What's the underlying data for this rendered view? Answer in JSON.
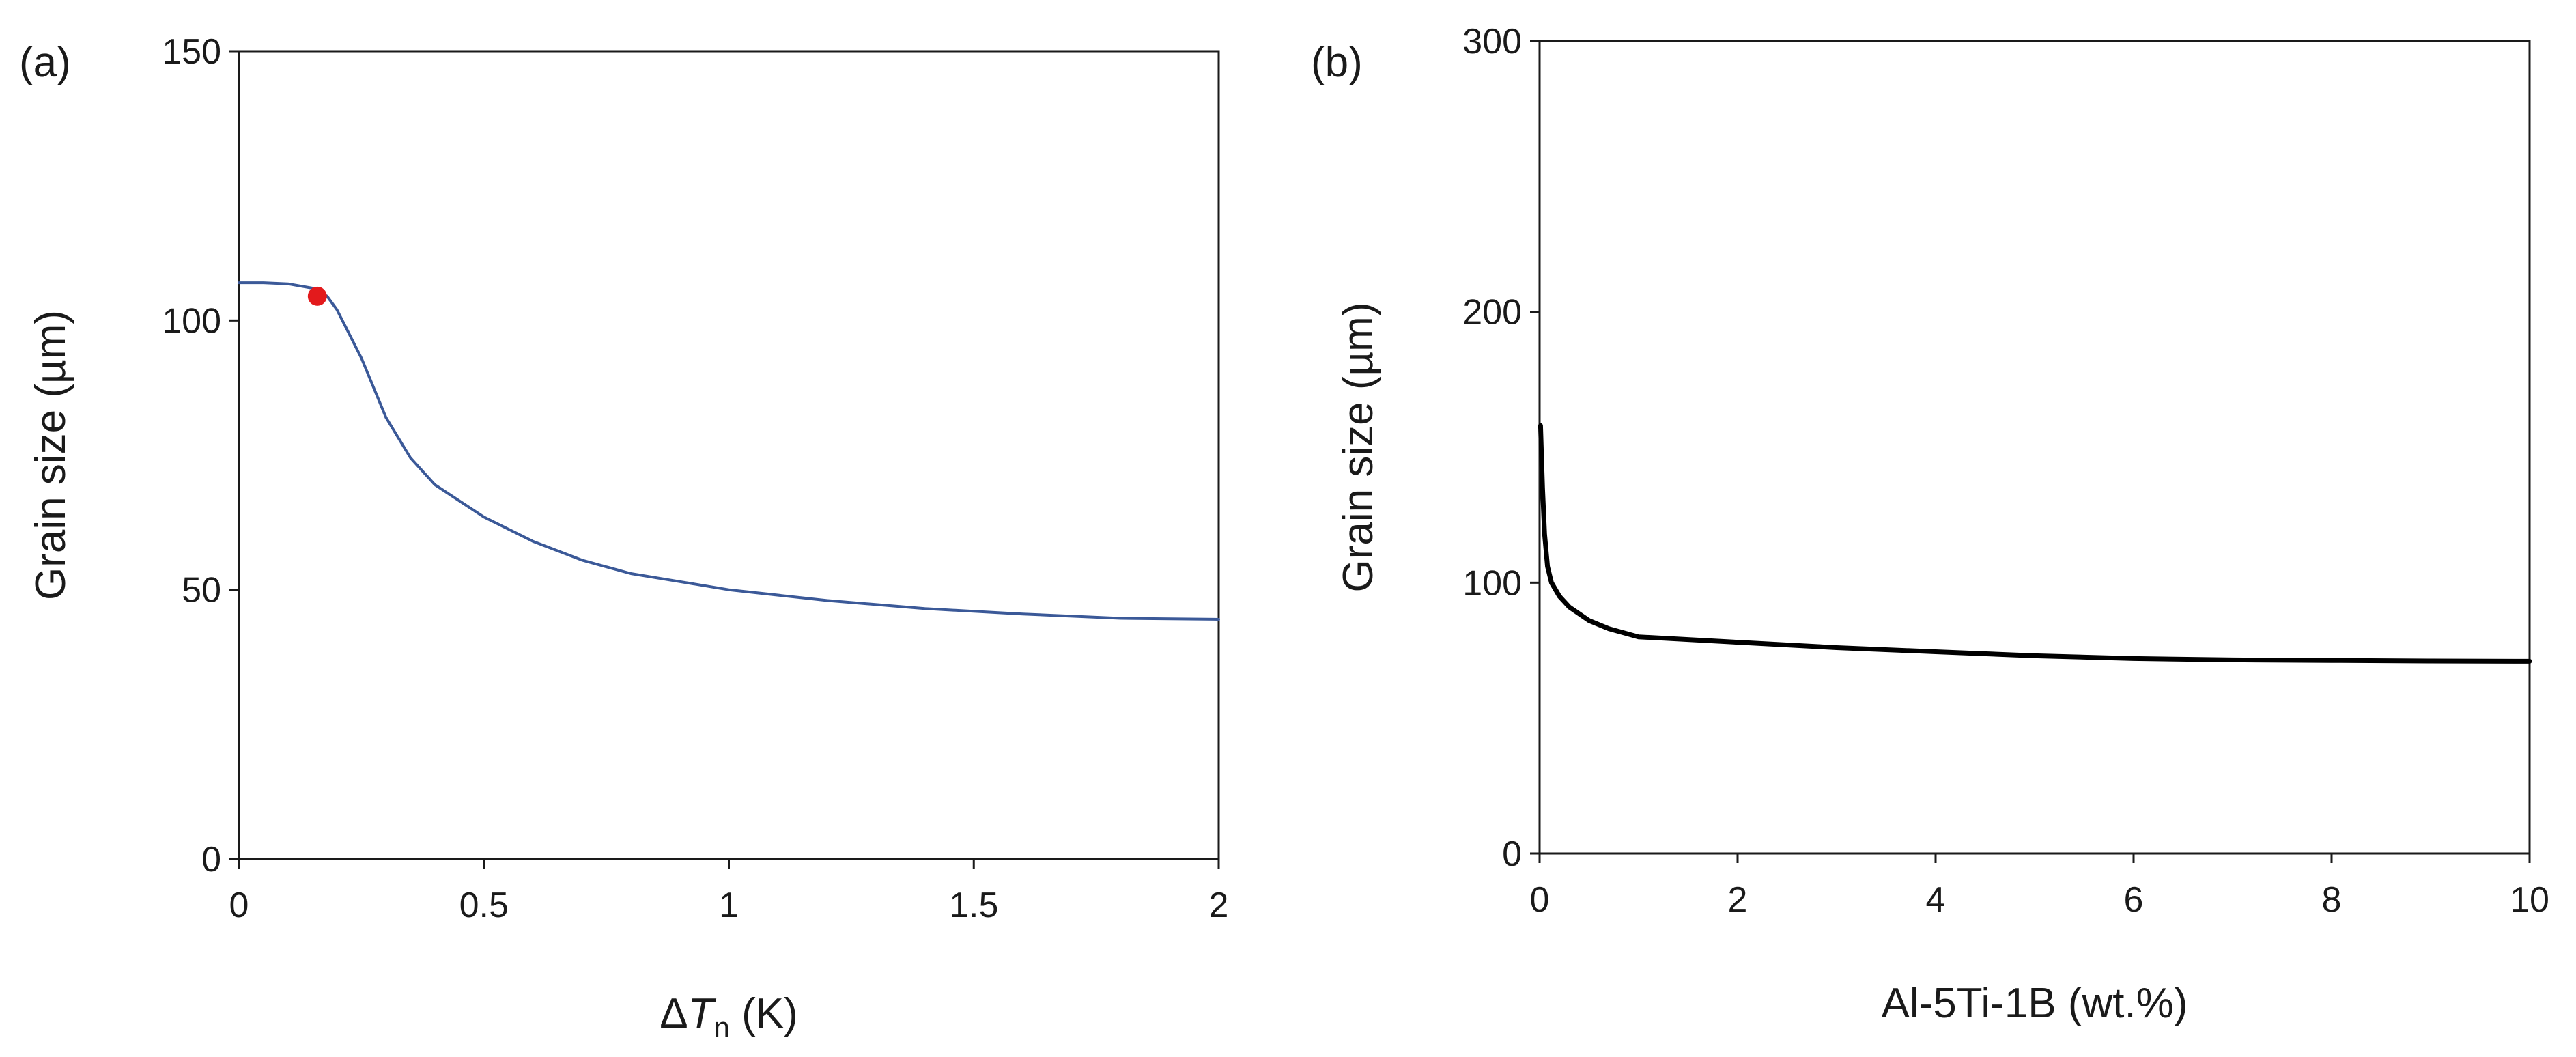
{
  "chart_data": [
    {
      "panel_label": "(a)",
      "type": "line",
      "xlabel_symbol": "ΔT",
      "xlabel_subscript": "n",
      "xlabel_unit": "(K)",
      "ylabel": "Grain size (µm)",
      "xlim": [
        0,
        2
      ],
      "ylim": [
        0,
        150
      ],
      "xticks": [
        0,
        0.5,
        1,
        1.5,
        2
      ],
      "xtick_labels": [
        "0",
        "0.5",
        "1",
        "1.5",
        "2"
      ],
      "yticks": [
        0,
        50,
        100,
        150
      ],
      "ytick_labels": [
        "0",
        "50",
        "100",
        "150"
      ],
      "series": [
        {
          "color": "#3b5998",
          "x": [
            0,
            0.05,
            0.1,
            0.15,
            0.18,
            0.2,
            0.25,
            0.3,
            0.35,
            0.4,
            0.5,
            0.6,
            0.7,
            0.8,
            0.9,
            1.0,
            1.2,
            1.4,
            1.6,
            1.8,
            2.0
          ],
          "y": [
            107,
            107,
            106.8,
            106,
            104.5,
            102,
            93,
            82,
            74.5,
            69.5,
            63.5,
            59,
            55.5,
            53,
            51.5,
            50,
            48,
            46.5,
            45.5,
            44.7,
            44.5
          ]
        }
      ],
      "markers": [
        {
          "x": 0.16,
          "y": 104.5,
          "color": "#e31a1c"
        }
      ]
    },
    {
      "panel_label": "(b)",
      "type": "line",
      "xlabel": "Al-5Ti-1B (wt.%)",
      "ylabel": "Grain size (µm)",
      "xlim": [
        0,
        10
      ],
      "ylim": [
        0,
        300
      ],
      "xticks": [
        0,
        2,
        4,
        6,
        8,
        10
      ],
      "xtick_labels": [
        "0",
        "2",
        "4",
        "6",
        "8",
        "10"
      ],
      "yticks": [
        0,
        100,
        200,
        300
      ],
      "ytick_labels": [
        "0",
        "100",
        "200",
        "300"
      ],
      "series": [
        {
          "color": "#000000",
          "x": [
            0.01,
            0.03,
            0.05,
            0.08,
            0.12,
            0.2,
            0.3,
            0.5,
            0.7,
            1.0,
            2,
            3,
            4,
            5,
            6,
            7,
            8,
            9,
            10
          ],
          "y": [
            158,
            135,
            118,
            106,
            100,
            95,
            91,
            86,
            83,
            80,
            78,
            76,
            74.5,
            73,
            72,
            71.5,
            71.3,
            71.1,
            71
          ]
        }
      ],
      "markers": []
    }
  ]
}
